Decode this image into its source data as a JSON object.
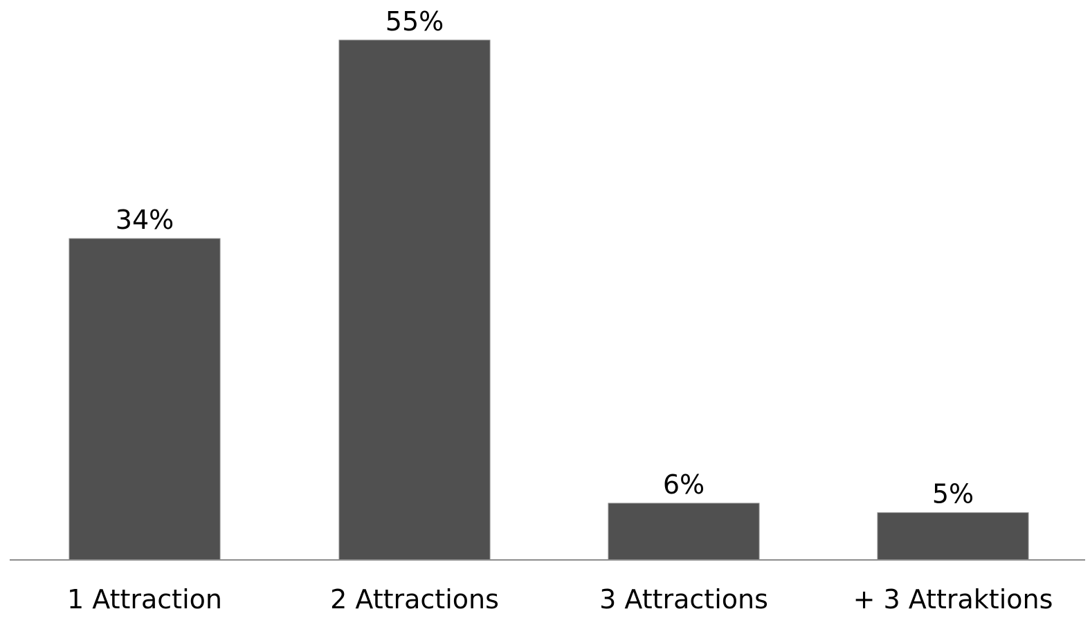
{
  "chart_data": {
    "type": "bar",
    "categories": [
      "1 Attraction",
      "2 Attractions",
      "3 Attractions",
      "+ 3 Attraktions"
    ],
    "values": [
      34,
      55,
      6,
      5
    ],
    "data_labels": [
      "34%",
      "55%",
      "6%",
      "5%"
    ],
    "unit": "%",
    "title": "",
    "xlabel": "",
    "ylabel": "",
    "ylim": [
      0,
      55
    ],
    "grid": false,
    "legend": "none",
    "bar_color": "#505050"
  }
}
